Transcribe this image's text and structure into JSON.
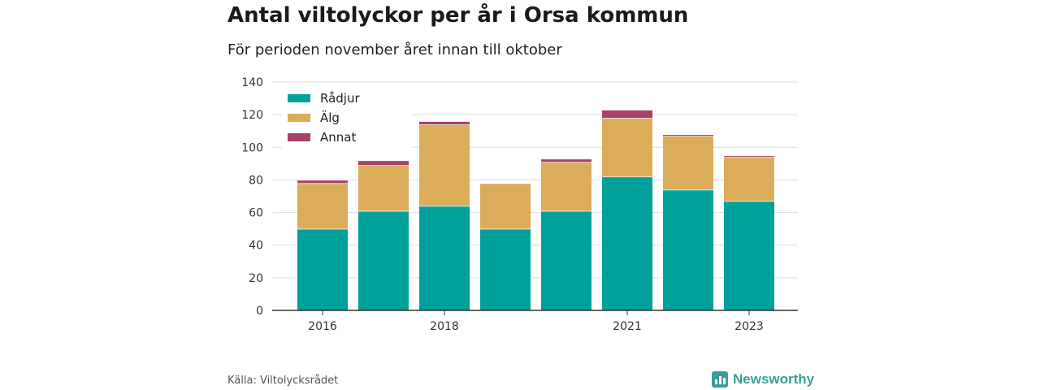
{
  "title": "Antal viltolyckor per år i Orsa kommun",
  "subtitle": "För perioden november året innan till oktober",
  "source": "Källa: Viltolycksrådet",
  "logo_text": "Newsworthy",
  "colors": {
    "radjur": "#00a19a",
    "alg": "#dbad5a",
    "annat": "#a6416a",
    "grid": "#dddddd",
    "axis": "#333333"
  },
  "chart_data": {
    "type": "bar",
    "stacked": true,
    "categories": [
      "2016",
      "2017",
      "2018",
      "2019",
      "2020",
      "2021",
      "2022",
      "2023"
    ],
    "x_tick_labels": [
      "2016",
      "",
      "2018",
      "",
      "",
      "2021",
      "",
      "2023"
    ],
    "series": [
      {
        "name": "Rådjur",
        "color": "#00a19a",
        "values": [
          50,
          61,
          64,
          50,
          61,
          82,
          74,
          67
        ]
      },
      {
        "name": "Älg",
        "color": "#dbad5a",
        "values": [
          28,
          28,
          50,
          28,
          30,
          36,
          33,
          27
        ]
      },
      {
        "name": "Annat",
        "color": "#a6416a",
        "values": [
          2,
          3,
          2,
          0,
          2,
          5,
          1,
          1
        ]
      }
    ],
    "ylim": [
      0,
      140
    ],
    "yticks": [
      0,
      20,
      40,
      60,
      80,
      100,
      120,
      140
    ],
    "grid": true,
    "legend_position": "top-left"
  }
}
